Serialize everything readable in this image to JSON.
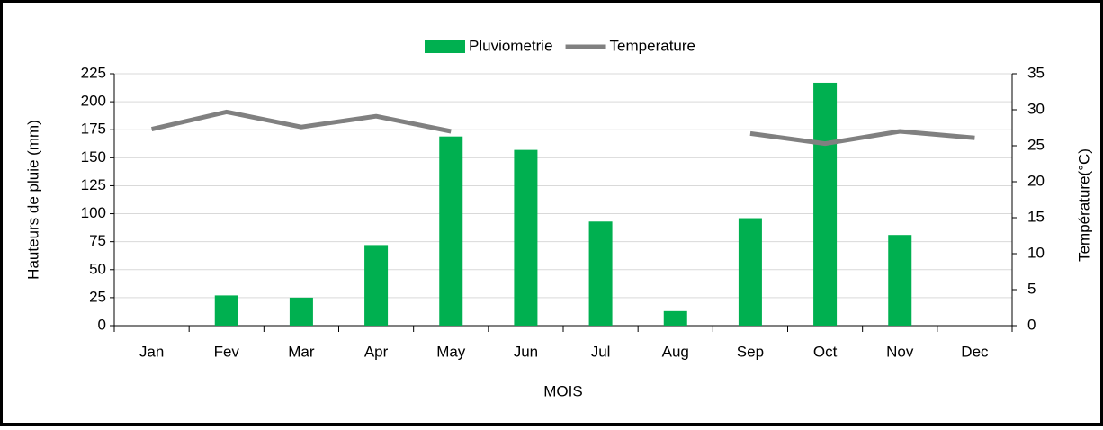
{
  "chart_data": {
    "type": "bar",
    "categories": [
      "Jan",
      "Fev",
      "Mar",
      "Apr",
      "May",
      "Jun",
      "Jul",
      "Aug",
      "Sep",
      "Oct",
      "Nov",
      "Dec"
    ],
    "series": [
      {
        "name": "Pluviometrie",
        "type": "bar",
        "color": "#00b050",
        "values": [
          0,
          27,
          25,
          72,
          169,
          157,
          93,
          13,
          96,
          217,
          81,
          0
        ]
      },
      {
        "name": "Temperature",
        "type": "line",
        "axis": "y2",
        "color": "#808080",
        "values": [
          27.3,
          29.7,
          27.6,
          29.1,
          27.0,
          null,
          null,
          null,
          26.7,
          25.3,
          27.0,
          26.1
        ]
      }
    ],
    "x_label": "MOIS",
    "y_label": "Hauteurs de pluie (mm)",
    "y2_label": "Température(°C)",
    "ylim": [
      0,
      225
    ],
    "yticks": [
      0,
      25,
      50,
      75,
      100,
      125,
      150,
      175,
      200,
      225
    ],
    "y2lim": [
      0,
      35
    ],
    "y2ticks": [
      0,
      5,
      10,
      15,
      20,
      25,
      30,
      35
    ],
    "grid": true,
    "legend": "top"
  }
}
